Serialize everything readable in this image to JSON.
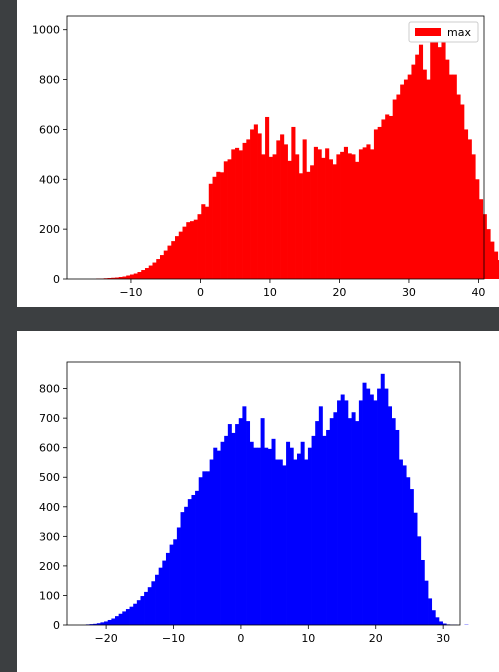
{
  "charts": [
    {
      "panel_id": "panel-1",
      "color": "#ff0000",
      "legend_label": "max"
    },
    {
      "panel_id": "panel-2",
      "color": "#0000ff",
      "legend_label": ""
    }
  ],
  "chart_data": [
    {
      "type": "bar",
      "title": "",
      "xlabel": "",
      "ylabel": "",
      "series": [
        {
          "name": "max",
          "color": "#ff0000"
        }
      ],
      "legend_position": "top-right",
      "xlim": [
        -19.2,
        40.8
      ],
      "ylim": [
        0,
        1055
      ],
      "xticks": [
        -10,
        0,
        10,
        20,
        30,
        40
      ],
      "yticks": [
        0,
        200,
        400,
        600,
        800,
        1000
      ],
      "bin_start": -15,
      "bin_width": 0.54,
      "values": [
        2,
        2,
        3,
        4,
        5,
        6,
        8,
        10,
        14,
        18,
        22,
        28,
        36,
        44,
        54,
        66,
        80,
        96,
        114,
        134,
        152,
        172,
        190,
        210,
        228,
        232,
        238,
        260,
        300,
        290,
        382,
        410,
        430,
        428,
        472,
        480,
        520,
        526,
        516,
        546,
        560,
        600,
        620,
        584,
        500,
        650,
        490,
        500,
        556,
        580,
        540,
        474,
        610,
        500,
        424,
        560,
        430,
        456,
        530,
        520,
        486,
        524,
        480,
        460,
        500,
        510,
        530,
        504,
        500,
        470,
        520,
        528,
        540,
        520,
        600,
        610,
        640,
        660,
        654,
        720,
        740,
        780,
        800,
        820,
        860,
        900,
        940,
        840,
        800,
        980,
        1000,
        930,
        960,
        880,
        820,
        820,
        740,
        700,
        600,
        560,
        500,
        400,
        320,
        260,
        200,
        150,
        110,
        76,
        50,
        34,
        22,
        14,
        8,
        4,
        2
      ]
    },
    {
      "type": "bar",
      "title": "",
      "xlabel": "",
      "ylabel": "",
      "series": [
        {
          "name": "",
          "color": "#0000ff"
        }
      ],
      "legend_position": "",
      "xlim": [
        -25.8,
        32.5
      ],
      "ylim": [
        0,
        890
      ],
      "xticks": [
        -20,
        -10,
        0,
        10,
        20,
        30
      ],
      "yticks": [
        0,
        100,
        200,
        300,
        400,
        500,
        600,
        700,
        800
      ],
      "bin_start": -23,
      "bin_width": 0.54,
      "values": [
        2,
        3,
        4,
        6,
        9,
        12,
        17,
        22,
        30,
        38,
        46,
        54,
        62,
        72,
        84,
        98,
        112,
        128,
        148,
        170,
        194,
        218,
        244,
        272,
        290,
        330,
        382,
        400,
        426,
        440,
        454,
        500,
        520,
        520,
        560,
        600,
        590,
        620,
        640,
        680,
        650,
        680,
        700,
        740,
        690,
        620,
        600,
        600,
        700,
        600,
        596,
        630,
        560,
        560,
        540,
        620,
        600,
        560,
        580,
        620,
        560,
        600,
        640,
        690,
        740,
        640,
        660,
        700,
        720,
        760,
        780,
        760,
        700,
        720,
        690,
        760,
        820,
        800,
        780,
        760,
        800,
        850,
        800,
        740,
        700,
        660,
        560,
        540,
        500,
        460,
        380,
        300,
        220,
        150,
        90,
        50,
        26,
        12,
        5,
        2,
        1,
        1,
        0,
        0,
        1
      ]
    }
  ]
}
